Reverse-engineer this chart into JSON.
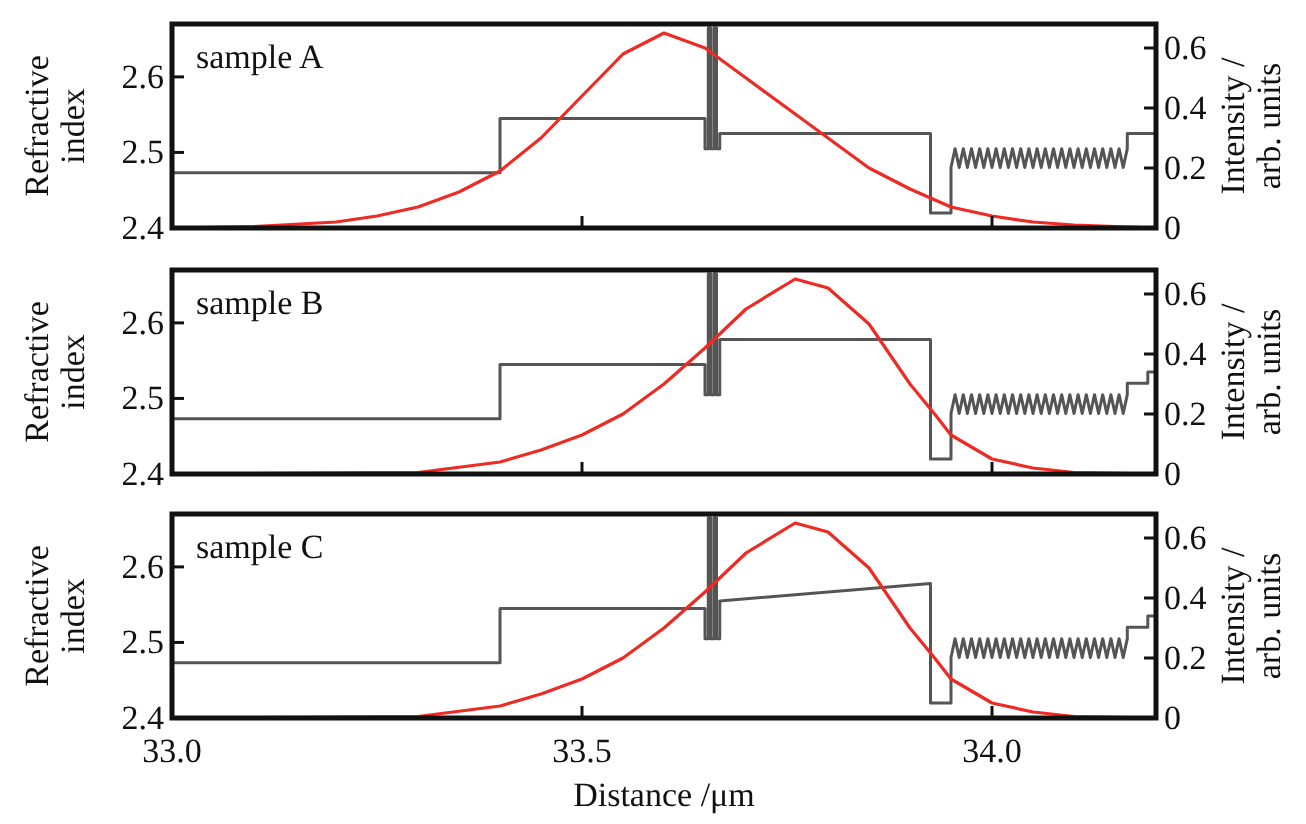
{
  "chart_data": [
    {
      "type": "line",
      "annotations": [
        "sample A"
      ],
      "ylabel": "Refractive index",
      "y2label": "Intensity / arb. units",
      "xlim": [
        33.0,
        34.2
      ],
      "xticks": [
        {
          "value": 33.5,
          "label": null
        },
        {
          "value": 34.0,
          "label": null
        }
      ],
      "ylim": [
        2.4,
        2.67
      ],
      "yticks": [
        2.4,
        2.5,
        2.6
      ],
      "y2lim": [
        0,
        0.68
      ],
      "y2ticks": [
        0,
        0.2,
        0.4,
        0.6
      ],
      "tick_labels": "y",
      "grid": false,
      "series": [
        {
          "color": "#555555",
          "x": [
            33.0,
            33.4,
            33.4,
            33.65,
            33.65,
            33.654,
            33.654,
            33.657,
            33.657,
            33.661,
            33.661,
            33.664,
            33.664,
            33.668,
            33.668,
            33.925,
            33.925,
            33.95,
            33.95,
            33.955,
            33.96,
            33.965,
            33.97,
            33.975,
            33.98,
            33.985,
            33.99,
            33.995,
            34.0,
            34.005,
            34.01,
            34.015,
            34.02,
            34.025,
            34.03,
            34.035,
            34.04,
            34.045,
            34.05,
            34.055,
            34.06,
            34.065,
            34.07,
            34.075,
            34.08,
            34.085,
            34.09,
            34.095,
            34.1,
            34.105,
            34.11,
            34.115,
            34.12,
            34.125,
            34.13,
            34.135,
            34.14,
            34.145,
            34.15,
            34.155,
            34.16,
            34.165,
            34.165,
            34.2
          ],
          "values": [
            2.473,
            2.473,
            2.545,
            2.545,
            2.505,
            2.505,
            2.665,
            2.665,
            2.505,
            2.505,
            2.665,
            2.665,
            2.505,
            2.505,
            2.525,
            2.525,
            2.42,
            2.42,
            2.48,
            2.505,
            2.48,
            2.505,
            2.48,
            2.505,
            2.48,
            2.505,
            2.48,
            2.505,
            2.48,
            2.505,
            2.48,
            2.505,
            2.48,
            2.505,
            2.48,
            2.505,
            2.48,
            2.505,
            2.48,
            2.505,
            2.48,
            2.505,
            2.48,
            2.505,
            2.48,
            2.505,
            2.48,
            2.505,
            2.48,
            2.505,
            2.48,
            2.505,
            2.48,
            2.505,
            2.48,
            2.505,
            2.48,
            2.505,
            2.48,
            2.505,
            2.48,
            2.505,
            2.525,
            2.525
          ]
        },
        {
          "color": "#ee2a24",
          "axis": "y2",
          "x": [
            33.0,
            33.1,
            33.2,
            33.25,
            33.3,
            33.35,
            33.4,
            33.45,
            33.5,
            33.55,
            33.6,
            33.65,
            33.7,
            33.75,
            33.8,
            33.85,
            33.9,
            33.95,
            34.0,
            34.05,
            34.1,
            34.2
          ],
          "values": [
            0,
            0.005,
            0.02,
            0.04,
            0.07,
            0.12,
            0.19,
            0.3,
            0.44,
            0.58,
            0.65,
            0.6,
            0.5,
            0.4,
            0.3,
            0.2,
            0.13,
            0.07,
            0.04,
            0.02,
            0.01,
            0
          ]
        }
      ]
    },
    {
      "type": "line",
      "annotations": [
        "sample B"
      ],
      "ylabel": "Refractive index",
      "y2label": "Intensity / arb. units",
      "xlim": [
        33.0,
        34.2
      ],
      "xticks": [
        {
          "value": 33.5,
          "label": null
        },
        {
          "value": 34.0,
          "label": null
        }
      ],
      "ylim": [
        2.4,
        2.67
      ],
      "yticks": [
        2.4,
        2.5,
        2.6
      ],
      "y2lim": [
        0,
        0.68
      ],
      "y2ticks": [
        0,
        0.2,
        0.4,
        0.6
      ],
      "tick_labels": "y",
      "grid": false,
      "series": [
        {
          "color": "#555555",
          "x": [
            33.0,
            33.4,
            33.4,
            33.65,
            33.65,
            33.654,
            33.654,
            33.657,
            33.657,
            33.661,
            33.661,
            33.664,
            33.664,
            33.668,
            33.668,
            33.925,
            33.925,
            33.95,
            33.95,
            33.955,
            33.96,
            33.965,
            33.97,
            33.975,
            33.98,
            33.985,
            33.99,
            33.995,
            34.0,
            34.005,
            34.01,
            34.015,
            34.02,
            34.025,
            34.03,
            34.035,
            34.04,
            34.045,
            34.05,
            34.055,
            34.06,
            34.065,
            34.07,
            34.075,
            34.08,
            34.085,
            34.09,
            34.095,
            34.1,
            34.105,
            34.11,
            34.115,
            34.12,
            34.125,
            34.13,
            34.135,
            34.14,
            34.145,
            34.15,
            34.155,
            34.16,
            34.165,
            34.165,
            34.19,
            34.19,
            34.2
          ],
          "values": [
            2.473,
            2.473,
            2.545,
            2.545,
            2.505,
            2.505,
            2.665,
            2.665,
            2.505,
            2.505,
            2.665,
            2.665,
            2.505,
            2.505,
            2.578,
            2.578,
            2.42,
            2.42,
            2.48,
            2.505,
            2.48,
            2.505,
            2.48,
            2.505,
            2.48,
            2.505,
            2.48,
            2.505,
            2.48,
            2.505,
            2.48,
            2.505,
            2.48,
            2.505,
            2.48,
            2.505,
            2.48,
            2.505,
            2.48,
            2.505,
            2.48,
            2.505,
            2.48,
            2.505,
            2.48,
            2.505,
            2.48,
            2.505,
            2.48,
            2.505,
            2.48,
            2.505,
            2.48,
            2.505,
            2.48,
            2.505,
            2.48,
            2.505,
            2.48,
            2.505,
            2.48,
            2.505,
            2.52,
            2.52,
            2.535,
            2.535
          ]
        },
        {
          "color": "#ee2a24",
          "axis": "y2",
          "x": [
            33.0,
            33.3,
            33.4,
            33.45,
            33.5,
            33.55,
            33.6,
            33.65,
            33.7,
            33.76,
            33.8,
            33.85,
            33.9,
            33.93,
            33.95,
            34.0,
            34.05,
            34.1,
            34.2
          ],
          "values": [
            0,
            0.005,
            0.04,
            0.08,
            0.13,
            0.2,
            0.3,
            0.42,
            0.55,
            0.65,
            0.62,
            0.5,
            0.3,
            0.2,
            0.13,
            0.05,
            0.02,
            0.005,
            0
          ]
        }
      ]
    },
    {
      "type": "line",
      "annotations": [
        "sample C"
      ],
      "xlabel": "Distance /μm",
      "ylabel": "Refractive index",
      "y2label": "Intensity / arb. units",
      "xlim": [
        33.0,
        34.2
      ],
      "xticks": [
        {
          "value": 33.0,
          "label": "33.0"
        },
        33.5,
        {
          "value": 34.0,
          "label": "34.0"
        }
      ],
      "ylim": [
        2.4,
        2.67
      ],
      "yticks": [
        2.4,
        2.5,
        2.6
      ],
      "y2lim": [
        0,
        0.68
      ],
      "y2ticks": [
        0,
        0.2,
        0.4,
        0.6
      ],
      "grid": false,
      "series": [
        {
          "color": "#555555",
          "x": [
            33.0,
            33.4,
            33.4,
            33.65,
            33.65,
            33.654,
            33.654,
            33.657,
            33.657,
            33.661,
            33.661,
            33.664,
            33.664,
            33.668,
            33.668,
            33.925,
            33.925,
            33.95,
            33.95,
            33.955,
            33.96,
            33.965,
            33.97,
            33.975,
            33.98,
            33.985,
            33.99,
            33.995,
            34.0,
            34.005,
            34.01,
            34.015,
            34.02,
            34.025,
            34.03,
            34.035,
            34.04,
            34.045,
            34.05,
            34.055,
            34.06,
            34.065,
            34.07,
            34.075,
            34.08,
            34.085,
            34.09,
            34.095,
            34.1,
            34.105,
            34.11,
            34.115,
            34.12,
            34.125,
            34.13,
            34.135,
            34.14,
            34.145,
            34.15,
            34.155,
            34.16,
            34.165,
            34.165,
            34.19,
            34.19,
            34.2
          ],
          "values": [
            2.473,
            2.473,
            2.545,
            2.545,
            2.505,
            2.505,
            2.665,
            2.665,
            2.505,
            2.505,
            2.665,
            2.665,
            2.505,
            2.505,
            2.555,
            2.578,
            2.42,
            2.42,
            2.48,
            2.505,
            2.48,
            2.505,
            2.48,
            2.505,
            2.48,
            2.505,
            2.48,
            2.505,
            2.48,
            2.505,
            2.48,
            2.505,
            2.48,
            2.505,
            2.48,
            2.505,
            2.48,
            2.505,
            2.48,
            2.505,
            2.48,
            2.505,
            2.48,
            2.505,
            2.48,
            2.505,
            2.48,
            2.505,
            2.48,
            2.505,
            2.48,
            2.505,
            2.48,
            2.505,
            2.48,
            2.505,
            2.48,
            2.505,
            2.48,
            2.505,
            2.48,
            2.505,
            2.52,
            2.52,
            2.535,
            2.535
          ]
        },
        {
          "color": "#ee2a24",
          "axis": "y2",
          "x": [
            33.0,
            33.3,
            33.4,
            33.45,
            33.5,
            33.55,
            33.6,
            33.65,
            33.7,
            33.76,
            33.8,
            33.85,
            33.9,
            33.93,
            33.95,
            34.0,
            34.05,
            34.1,
            34.2
          ],
          "values": [
            0,
            0.005,
            0.04,
            0.08,
            0.13,
            0.2,
            0.3,
            0.42,
            0.55,
            0.65,
            0.62,
            0.5,
            0.3,
            0.2,
            0.13,
            0.05,
            0.02,
            0.005,
            0
          ]
        }
      ]
    }
  ]
}
